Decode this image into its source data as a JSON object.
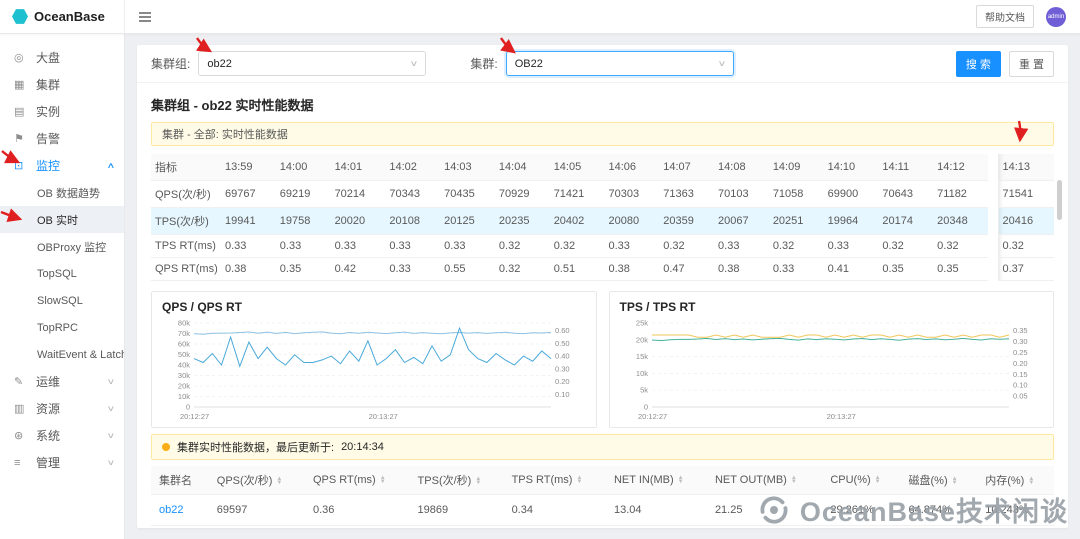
{
  "header": {
    "brand": "OceanBase",
    "help_button": "帮助文档",
    "avatar": "admin"
  },
  "sidebar": {
    "items": [
      {
        "label": "大盘",
        "icon": "dashboard-icon"
      },
      {
        "label": "集群",
        "icon": "cluster-icon"
      },
      {
        "label": "实例",
        "icon": "instance-icon"
      },
      {
        "label": "告警",
        "icon": "alert-icon"
      },
      {
        "label": "监控",
        "icon": "monitor-icon",
        "expanded": true,
        "children": [
          {
            "label": "OB 数据趋势"
          },
          {
            "label": "OB 实时",
            "active": true
          },
          {
            "label": "OBProxy 监控"
          },
          {
            "label": "TopSQL"
          },
          {
            "label": "SlowSQL"
          },
          {
            "label": "TopRPC"
          },
          {
            "label": "WaitEvent & Latch"
          }
        ]
      },
      {
        "label": "运维",
        "icon": "ops-icon",
        "collapsible": true
      },
      {
        "label": "资源",
        "icon": "resource-icon",
        "collapsible": true
      },
      {
        "label": "系统",
        "icon": "system-icon",
        "collapsible": true
      },
      {
        "label": "管理",
        "icon": "manage-icon",
        "collapsible": true
      }
    ]
  },
  "filters": {
    "cluster_group_label": "集群组:",
    "cluster_group_value": "ob22",
    "cluster_label": "集群:",
    "cluster_value": "OB22",
    "search_button": "搜 索",
    "reset_button": "重 置"
  },
  "main": {
    "title": "集群组 - ob22 实时性能数据",
    "banner_scope": "集群 - 全部: 实时性能数据",
    "banner_update_text": "集群实时性能数据，最后更新于:",
    "banner_update_time": "20:14:34"
  },
  "metrics_table": {
    "first_column": "指标",
    "times": [
      "13:59",
      "14:00",
      "14:01",
      "14:02",
      "14:03",
      "14:04",
      "14:05",
      "14:06",
      "14:07",
      "14:08",
      "14:09",
      "14:10",
      "14:11",
      "14:12"
    ],
    "pinned_time": "14:13",
    "rows": [
      {
        "label": "QPS(次/秒)",
        "highlight": false,
        "values": [
          "69767",
          "69219",
          "70214",
          "70343",
          "70435",
          "70929",
          "71421",
          "70303",
          "71363",
          "70103",
          "71058",
          "69900",
          "70643",
          "71182"
        ],
        "pinned": "71541"
      },
      {
        "label": "TPS(次/秒)",
        "highlight": true,
        "values": [
          "19941",
          "19758",
          "20020",
          "20108",
          "20125",
          "20235",
          "20402",
          "20080",
          "20359",
          "20067",
          "20251",
          "19964",
          "20174",
          "20348"
        ],
        "pinned": "20416"
      },
      {
        "label": "TPS RT(ms)",
        "highlight": false,
        "values": [
          "0.33",
          "0.33",
          "0.33",
          "0.33",
          "0.33",
          "0.32",
          "0.32",
          "0.33",
          "0.32",
          "0.33",
          "0.32",
          "0.33",
          "0.32",
          "0.32"
        ],
        "pinned": "0.32"
      },
      {
        "label": "QPS RT(ms)",
        "highlight": false,
        "values": [
          "0.38",
          "0.35",
          "0.42",
          "0.33",
          "0.55",
          "0.32",
          "0.51",
          "0.38",
          "0.47",
          "0.38",
          "0.33",
          "0.41",
          "0.35",
          "0.35"
        ],
        "pinned": "0.37"
      }
    ]
  },
  "chart_data": [
    {
      "type": "line",
      "title": "QPS / QPS RT",
      "x_labels": [
        "20:12:27",
        "20:13:27"
      ],
      "left_axis": {
        "min": 0,
        "max": 80000,
        "tick_labels": [
          "80k",
          "70k",
          "60k",
          "50k",
          "40k",
          "30k",
          "20k",
          "10k",
          "0"
        ]
      },
      "right_axis": {
        "min": 0,
        "max": 0.66,
        "tick_labels": [
          "0.60",
          "0.50",
          "0.40",
          "0.30",
          "0.20",
          "0.10"
        ]
      },
      "grid": true,
      "series": [
        {
          "name": "QPS",
          "axis": "left",
          "color": "#8fc1e3",
          "values": [
            69767,
            69219,
            70214,
            70343,
            70435,
            70929,
            71421,
            70303,
            71363,
            70103,
            71058,
            69900,
            70643,
            71182,
            71541,
            70380,
            69820,
            70910,
            70150,
            71120,
            70480,
            69950,
            70720,
            71310,
            70090,
            70820,
            70260,
            69740,
            70580,
            71040,
            70400,
            70880,
            70120,
            70690,
            71230,
            70310,
            69870,
            70760,
            70520,
            70980
          ]
        },
        {
          "name": "QPS RT",
          "axis": "right",
          "color": "#49a9d9",
          "values": [
            0.38,
            0.35,
            0.42,
            0.33,
            0.55,
            0.32,
            0.51,
            0.38,
            0.47,
            0.38,
            0.33,
            0.41,
            0.35,
            0.35,
            0.37,
            0.4,
            0.34,
            0.44,
            0.36,
            0.52,
            0.33,
            0.38,
            0.45,
            0.35,
            0.39,
            0.34,
            0.48,
            0.36,
            0.41,
            0.62,
            0.45,
            0.38,
            0.35,
            0.42,
            0.37,
            0.33,
            0.4,
            0.36,
            0.44,
            0.38
          ]
        }
      ]
    },
    {
      "type": "line",
      "title": "TPS / TPS RT",
      "x_labels": [
        "20:12:27",
        "20:13:27"
      ],
      "left_axis": {
        "min": 0,
        "max": 25000,
        "tick_labels": [
          "25k",
          "20k",
          "15k",
          "10k",
          "5k",
          "0"
        ]
      },
      "right_axis": {
        "min": 0,
        "max": 0.385,
        "tick_labels": [
          "0.35",
          "0.30",
          "0.25",
          "0.20",
          "0.15",
          "0.10",
          "0.05"
        ]
      },
      "grid": true,
      "series": [
        {
          "name": "TPS",
          "axis": "left",
          "color": "#46b39d",
          "values": [
            19941,
            19758,
            20020,
            20108,
            20125,
            20235,
            20402,
            20080,
            20359,
            20067,
            20251,
            19964,
            20174,
            20348,
            20416,
            20110,
            19920,
            20260,
            20060,
            20310,
            20150,
            19985,
            20225,
            20385,
            20065,
            20285,
            20125,
            19895,
            20205,
            20345,
            20085,
            20265,
            20025,
            20185,
            20405,
            20115,
            19955,
            20295,
            20165,
            20315
          ]
        },
        {
          "name": "TPS RT",
          "axis": "right",
          "color": "#f2c659",
          "values": [
            0.33,
            0.33,
            0.33,
            0.33,
            0.33,
            0.32,
            0.32,
            0.33,
            0.32,
            0.33,
            0.32,
            0.33,
            0.32,
            0.32,
            0.32,
            0.33,
            0.32,
            0.33,
            0.33,
            0.32,
            0.33,
            0.32,
            0.33,
            0.32,
            0.33,
            0.33,
            0.32,
            0.33,
            0.32,
            0.33,
            0.32,
            0.32,
            0.33,
            0.32,
            0.33,
            0.32,
            0.33,
            0.33,
            0.32,
            0.33
          ]
        }
      ]
    }
  ],
  "summary_table": {
    "columns": [
      {
        "label": "集群名",
        "sortable": false
      },
      {
        "label": "QPS(次/秒)",
        "sortable": true
      },
      {
        "label": "QPS RT(ms)",
        "sortable": true
      },
      {
        "label": "TPS(次/秒)",
        "sortable": true
      },
      {
        "label": "TPS RT(ms)",
        "sortable": true
      },
      {
        "label": "NET IN(MB)",
        "sortable": true
      },
      {
        "label": "NET OUT(MB)",
        "sortable": true
      },
      {
        "label": "CPU(%)",
        "sortable": true
      },
      {
        "label": "磁盘(%)",
        "sortable": true
      },
      {
        "label": "内存(%)",
        "sortable": true
      }
    ],
    "row": [
      "ob22",
      "69597",
      "0.36",
      "19869",
      "0.34",
      "13.04",
      "21.25",
      "29.261%",
      "64.874%",
      "10.243%"
    ]
  },
  "watermark": "OceanBase技术闲谈"
}
